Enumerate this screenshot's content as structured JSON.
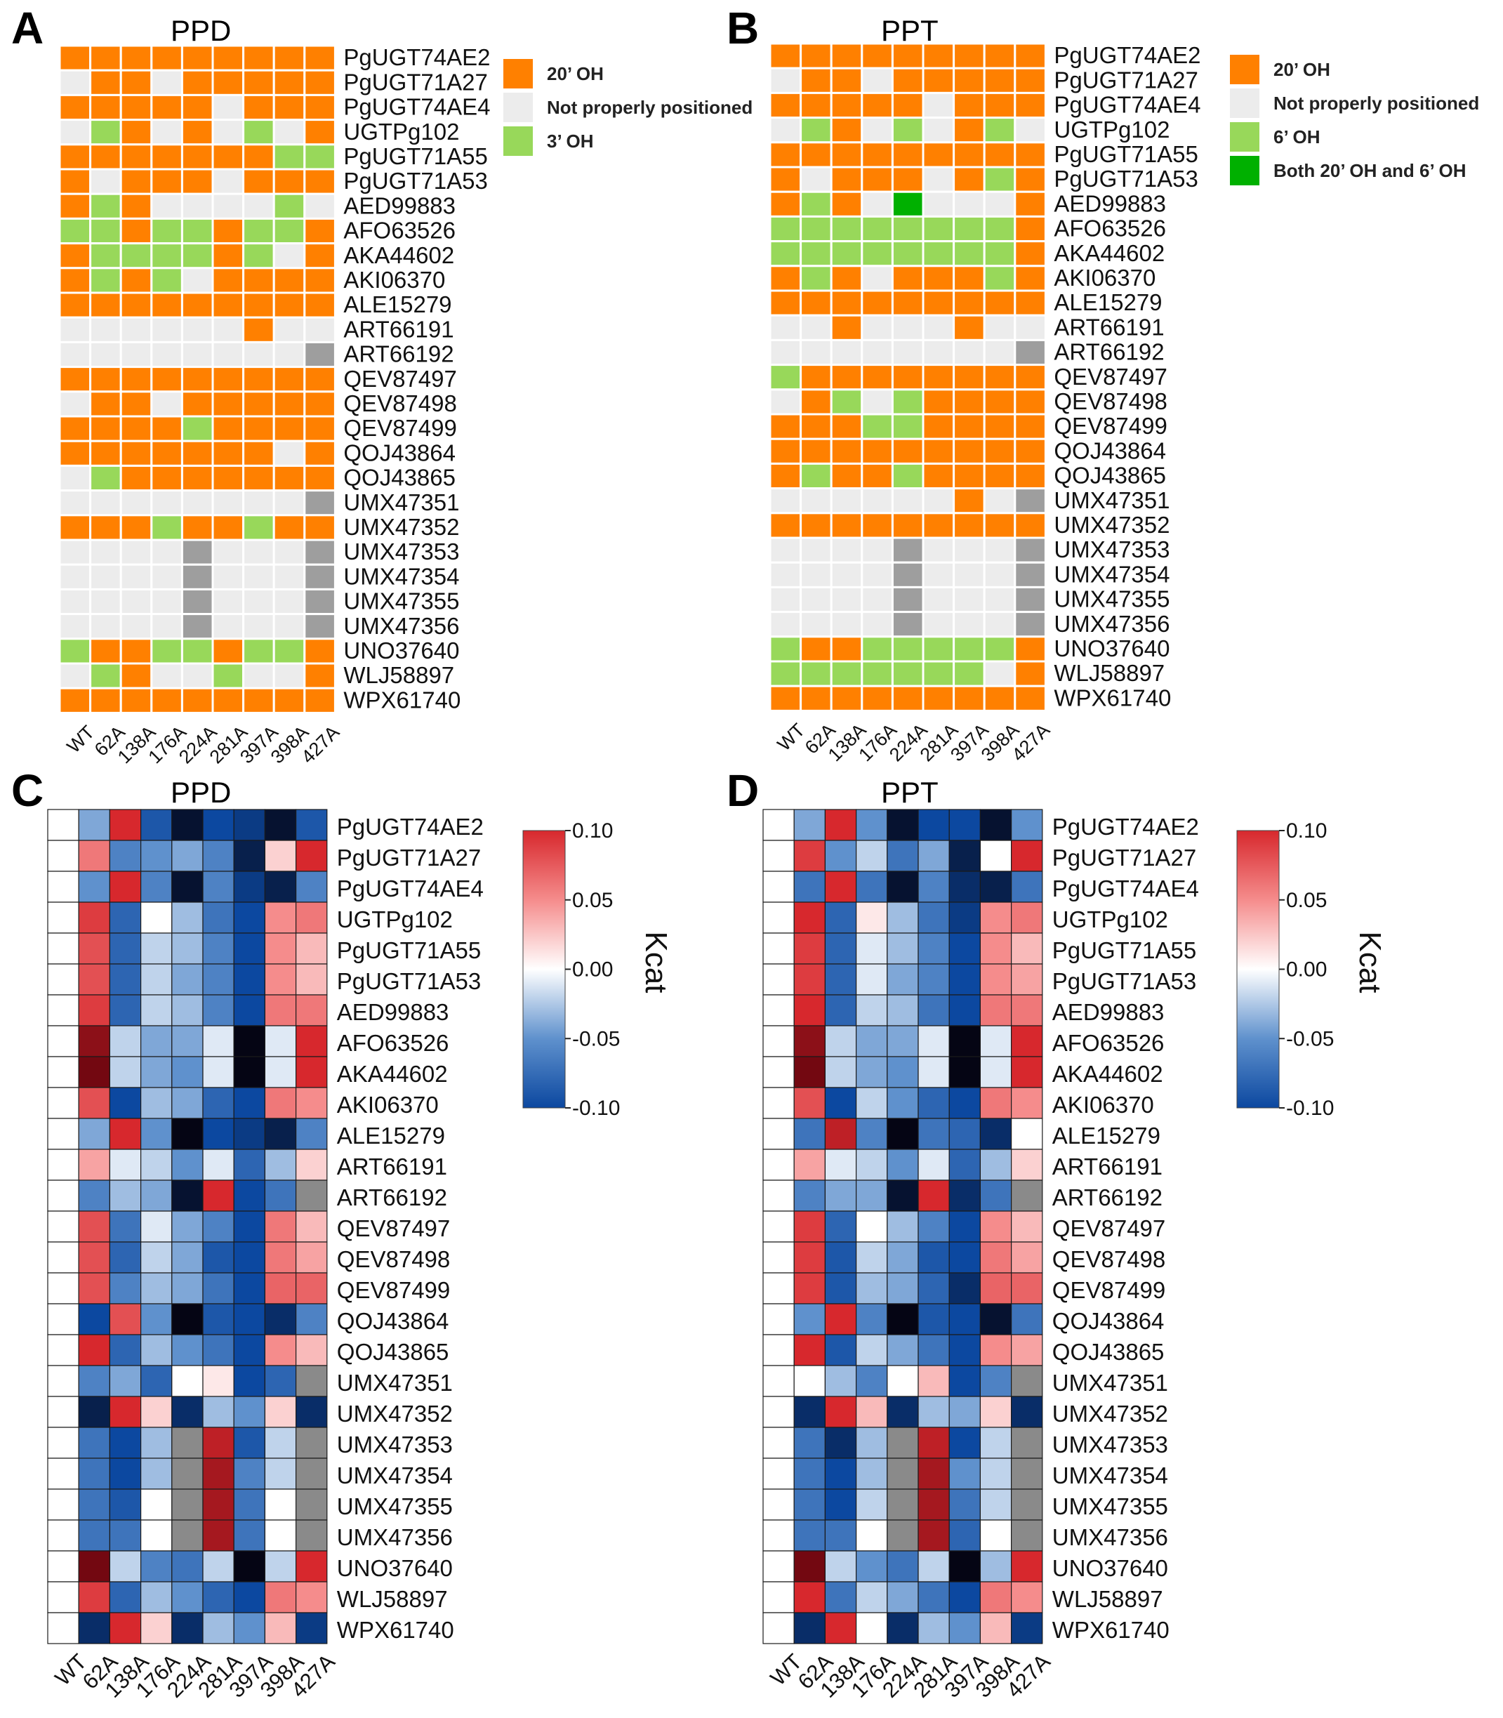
{
  "panels": [
    {
      "letter": "A",
      "title": "PPD"
    },
    {
      "letter": "B",
      "title": "PPT"
    },
    {
      "letter": "C",
      "title": "PPD"
    },
    {
      "letter": "D",
      "title": "PPT"
    }
  ],
  "colors": {
    "oh20": "#ff8000",
    "notpos": "#ececec",
    "oh3": "#98d85a",
    "both": "#00b000",
    "missing": "#9e9e9e",
    "heat_missing": "#8a8a8a"
  },
  "chart_data": [
    {
      "panel": "A",
      "type": "heatmap",
      "title": "PPD",
      "columns": [
        "WT",
        "62A",
        "138A",
        "176A",
        "224A",
        "281A",
        "397A",
        "398A",
        "427A"
      ],
      "rows": [
        "PgUGT74AE2",
        "PgUGT71A27",
        "PgUGT74AE4",
        "UGTPg102",
        "PgUGT71A55",
        "PgUGT71A53",
        "AED99883",
        "AFO63526",
        "AKA44602",
        "AKI06370",
        "ALE15279",
        "ART66191",
        "ART66192",
        "QEV87497",
        "QEV87498",
        "QEV87499",
        "QOJ43864",
        "QOJ43865",
        "UMX47351",
        "UMX47352",
        "UMX47353",
        "UMX47354",
        "UMX47355",
        "UMX47356",
        "UNO37640",
        "WLJ58897",
        "WPX61740"
      ],
      "legend": [
        {
          "code": "O",
          "label": "20’ OH"
        },
        {
          "code": "N",
          "label": "Not properly positioned"
        },
        {
          "code": "G",
          "label": "3’ OH"
        }
      ],
      "grid": [
        "OOOOOOOOO",
        "NOONOOOOO",
        "OOOOONOOO",
        "NGONONGNO",
        "OOOOOOOGG",
        "ONOOONOOO",
        "OGONNNNGN",
        "GGOGGOGGO",
        "OGGGGOGNO",
        "OGOGNOOOO",
        "OOOOOOOOO",
        "NNNNNNONN",
        "NNNNNNNNX",
        "OOOOOOOOO",
        "NOONOOOOO",
        "OOOOGOOOO",
        "OOOOOOONO",
        "NGOOOOOOO",
        "NNNNNNNNX",
        "OOOGOOGOO",
        "NNNNXNNNX",
        "NNNNXNNNX",
        "NNNNXNNNX",
        "NNNNXNNNX",
        "GOOGGOGGO",
        "NGONNGNNO",
        "OOOOOOOOO"
      ]
    },
    {
      "panel": "B",
      "type": "heatmap",
      "title": "PPT",
      "columns": [
        "WT",
        "62A",
        "138A",
        "176A",
        "224A",
        "281A",
        "397A",
        "398A",
        "427A"
      ],
      "rows": [
        "PgUGT74AE2",
        "PgUGT71A27",
        "PgUGT74AE4",
        "UGTPg102",
        "PgUGT71A55",
        "PgUGT71A53",
        "AED99883",
        "AFO63526",
        "AKA44602",
        "AKI06370",
        "ALE15279",
        "ART66191",
        "ART66192",
        "QEV87497",
        "QEV87498",
        "QEV87499",
        "QOJ43864",
        "QOJ43865",
        "UMX47351",
        "UMX47352",
        "UMX47353",
        "UMX47354",
        "UMX47355",
        "UMX47356",
        "UNO37640",
        "WLJ58897",
        "WPX61740"
      ],
      "legend": [
        {
          "code": "O",
          "label": "20’ OH"
        },
        {
          "code": "N",
          "label": "Not properly positioned"
        },
        {
          "code": "G",
          "label": "6’ OH"
        },
        {
          "code": "B",
          "label": "Both 20’ OH and 6’ OH"
        }
      ],
      "grid": [
        "OOOOOOOOO",
        "NOONOOOOO",
        "OOOOONOOO",
        "NGONGNOGN",
        "OOOOOOOOO",
        "ONOOONOGO",
        "OGONBNNNO",
        "GGGGGGGGO",
        "GGGGGGGGO",
        "OGONOOOGO",
        "OOOOOOOOO",
        "NNONNNONN",
        "NNNNNNNNX",
        "GOOOOOOOO",
        "NOGNGOOOO",
        "OOOGGOOOO",
        "OOOOOOOOO",
        "OGOOGOOOO",
        "NNNNNNONX",
        "OOOOOOOOO",
        "NNNNXNNNX",
        "NNNNXNNNX",
        "NNNNXNNNX",
        "NNNNXNNNX",
        "GOOGGGGGO",
        "GGGGGGGNO",
        "OOOOOOOOO"
      ]
    },
    {
      "panel": "C",
      "type": "heatmap",
      "title": "PPD",
      "value_name": "Kcat",
      "color_range": [
        -0.1,
        0.1
      ],
      "colorbar_ticks": [
        "0.10",
        "0.05",
        "0.00",
        "-0.05",
        "-0.10"
      ],
      "columns": [
        "WT",
        "62A",
        "138A",
        "176A",
        "224A",
        "281A",
        "397A",
        "398A",
        "427A"
      ],
      "rows": [
        "PgUGT74AE2",
        "PgUGT71A27",
        "PgUGT74AE4",
        "UGTPg102",
        "PgUGT71A55",
        "PgUGT71A53",
        "AED99883",
        "AFO63526",
        "AKA44602",
        "AKI06370",
        "ALE15279",
        "ART66191",
        "ART66192",
        "QEV87497",
        "QEV87498",
        "QEV87499",
        "QOJ43864",
        "QOJ43865",
        "UMX47351",
        "UMX47352",
        "UMX47353",
        "UMX47354",
        "UMX47355",
        "UMX47356",
        "UNO37640",
        "WLJ58897",
        "WPX61740"
      ],
      "values": [
        [
          0,
          -0.04,
          0.1,
          -0.09,
          -0.14,
          -0.1,
          -0.11,
          -0.14,
          -0.09
        ],
        [
          0,
          0.06,
          -0.06,
          -0.05,
          -0.04,
          -0.06,
          -0.13,
          0.02,
          0.1
        ],
        [
          0,
          -0.05,
          0.1,
          -0.06,
          -0.14,
          -0.06,
          -0.11,
          -0.13,
          -0.06
        ],
        [
          0,
          0.09,
          -0.08,
          0.0,
          -0.03,
          -0.07,
          -0.1,
          0.05,
          0.06
        ],
        [
          0,
          0.08,
          -0.08,
          -0.02,
          -0.03,
          -0.06,
          -0.1,
          0.05,
          0.03
        ],
        [
          0,
          0.08,
          -0.08,
          -0.02,
          -0.04,
          -0.06,
          -0.1,
          0.05,
          0.03
        ],
        [
          0,
          0.09,
          -0.08,
          -0.02,
          -0.03,
          -0.06,
          -0.1,
          0.06,
          0.06
        ],
        [
          0,
          0.13,
          -0.02,
          -0.04,
          -0.04,
          -0.01,
          -0.15,
          -0.01,
          0.1
        ],
        [
          0,
          0.14,
          -0.02,
          -0.04,
          -0.05,
          -0.01,
          -0.15,
          -0.01,
          0.1
        ],
        [
          0,
          0.08,
          -0.1,
          -0.03,
          -0.04,
          -0.08,
          -0.1,
          0.06,
          0.05
        ],
        [
          0,
          -0.04,
          0.1,
          -0.05,
          -0.15,
          -0.1,
          -0.11,
          -0.13,
          -0.06
        ],
        [
          0,
          0.04,
          -0.01,
          -0.02,
          -0.05,
          -0.01,
          -0.08,
          -0.03,
          0.02
        ],
        [
          0,
          -0.06,
          -0.03,
          -0.04,
          -0.14,
          0.1,
          -0.1,
          -0.07,
          null
        ],
        [
          0,
          0.08,
          -0.07,
          -0.01,
          -0.04,
          -0.06,
          -0.1,
          0.06,
          0.03
        ],
        [
          0,
          0.08,
          -0.08,
          -0.02,
          -0.04,
          -0.09,
          -0.1,
          0.06,
          0.04
        ],
        [
          0,
          0.08,
          -0.06,
          -0.03,
          -0.04,
          -0.07,
          -0.1,
          0.07,
          0.07
        ],
        [
          0,
          -0.1,
          0.08,
          -0.05,
          -0.15,
          -0.09,
          -0.1,
          -0.12,
          -0.06
        ],
        [
          0,
          0.1,
          -0.08,
          -0.03,
          -0.05,
          -0.07,
          -0.1,
          0.05,
          0.03
        ],
        [
          0,
          -0.06,
          -0.04,
          -0.08,
          0.0,
          0.01,
          -0.1,
          -0.08,
          null
        ],
        [
          0,
          -0.13,
          0.1,
          0.02,
          -0.12,
          -0.03,
          -0.05,
          0.02,
          -0.12
        ],
        [
          0,
          -0.07,
          -0.1,
          -0.03,
          null,
          0.11,
          -0.09,
          -0.02,
          null
        ],
        [
          0,
          -0.07,
          -0.1,
          -0.03,
          null,
          0.12,
          -0.06,
          -0.02,
          null
        ],
        [
          0,
          -0.07,
          -0.09,
          0.0,
          null,
          0.12,
          -0.07,
          0.0,
          null
        ],
        [
          0,
          -0.07,
          -0.07,
          0.0,
          null,
          0.12,
          -0.07,
          0.0,
          null
        ],
        [
          0,
          0.14,
          -0.02,
          -0.06,
          -0.07,
          -0.02,
          -0.15,
          -0.02,
          0.1
        ],
        [
          0,
          0.09,
          -0.08,
          -0.03,
          -0.05,
          -0.08,
          -0.1,
          0.06,
          0.05
        ],
        [
          0,
          -0.12,
          0.1,
          0.02,
          -0.12,
          -0.03,
          -0.05,
          0.03,
          -0.11
        ]
      ]
    },
    {
      "panel": "D",
      "type": "heatmap",
      "title": "PPT",
      "value_name": "Kcat",
      "color_range": [
        -0.1,
        0.1
      ],
      "colorbar_ticks": [
        "0.10",
        "0.05",
        "0.00",
        "-0.05",
        "-0.10"
      ],
      "columns": [
        "WT",
        "62A",
        "138A",
        "176A",
        "224A",
        "281A",
        "397A",
        "398A",
        "427A"
      ],
      "rows": [
        "PgUGT74AE2",
        "PgUGT71A27",
        "PgUGT74AE4",
        "UGTPg102",
        "PgUGT71A55",
        "PgUGT71A53",
        "AED99883",
        "AFO63526",
        "AKA44602",
        "AKI06370",
        "ALE15279",
        "ART66191",
        "ART66192",
        "QEV87497",
        "QEV87498",
        "QEV87499",
        "QOJ43864",
        "QOJ43865",
        "UMX47351",
        "UMX47352",
        "UMX47353",
        "UMX47354",
        "UMX47355",
        "UMX47356",
        "UNO37640",
        "WLJ58897",
        "WPX61740"
      ],
      "values": [
        [
          0,
          -0.04,
          0.1,
          -0.05,
          -0.14,
          -0.1,
          -0.1,
          -0.14,
          -0.05
        ],
        [
          0,
          0.09,
          -0.05,
          -0.02,
          -0.07,
          -0.04,
          -0.13,
          0.0,
          0.1
        ],
        [
          0,
          -0.07,
          0.1,
          -0.07,
          -0.14,
          -0.06,
          -0.12,
          -0.13,
          -0.07
        ],
        [
          0,
          0.1,
          -0.08,
          0.01,
          -0.03,
          -0.07,
          -0.11,
          0.05,
          0.06
        ],
        [
          0,
          0.09,
          -0.08,
          -0.01,
          -0.03,
          -0.06,
          -0.1,
          0.05,
          0.03
        ],
        [
          0,
          0.09,
          -0.08,
          -0.01,
          -0.04,
          -0.06,
          -0.1,
          0.05,
          0.04
        ],
        [
          0,
          0.1,
          -0.08,
          -0.02,
          -0.03,
          -0.07,
          -0.1,
          0.06,
          0.06
        ],
        [
          0,
          0.13,
          -0.02,
          -0.04,
          -0.04,
          -0.01,
          -0.15,
          -0.01,
          0.1
        ],
        [
          0,
          0.14,
          -0.02,
          -0.04,
          -0.05,
          -0.01,
          -0.15,
          -0.01,
          0.1
        ],
        [
          0,
          0.08,
          -0.1,
          -0.02,
          -0.05,
          -0.08,
          -0.1,
          0.06,
          0.05
        ],
        [
          0,
          -0.07,
          0.11,
          -0.06,
          -0.15,
          -0.07,
          -0.08,
          -0.12,
          0.0
        ],
        [
          0,
          0.04,
          -0.01,
          -0.02,
          -0.05,
          -0.01,
          -0.08,
          -0.03,
          0.02
        ],
        [
          0,
          -0.06,
          -0.04,
          -0.04,
          -0.14,
          0.1,
          -0.12,
          -0.07,
          null
        ],
        [
          0,
          0.09,
          -0.08,
          0.0,
          -0.03,
          -0.06,
          -0.1,
          0.05,
          0.03
        ],
        [
          0,
          0.09,
          -0.09,
          -0.02,
          -0.04,
          -0.09,
          -0.1,
          0.06,
          0.04
        ],
        [
          0,
          0.09,
          -0.09,
          -0.03,
          -0.04,
          -0.08,
          -0.12,
          0.07,
          0.07
        ],
        [
          0,
          -0.05,
          0.1,
          -0.06,
          -0.15,
          -0.09,
          -0.1,
          -0.14,
          -0.07
        ],
        [
          0,
          0.1,
          -0.09,
          -0.02,
          -0.04,
          -0.07,
          -0.1,
          0.05,
          0.04
        ],
        [
          0,
          0.0,
          -0.03,
          -0.06,
          0.0,
          0.03,
          -0.1,
          -0.06,
          null
        ],
        [
          0,
          -0.12,
          0.1,
          0.03,
          -0.12,
          -0.03,
          -0.04,
          0.02,
          -0.12
        ],
        [
          0,
          -0.07,
          -0.12,
          -0.03,
          null,
          0.11,
          -0.1,
          -0.02,
          null
        ],
        [
          0,
          -0.07,
          -0.1,
          -0.03,
          null,
          0.12,
          -0.05,
          -0.02,
          null
        ],
        [
          0,
          -0.07,
          -0.1,
          -0.02,
          null,
          0.12,
          -0.07,
          -0.02,
          null
        ],
        [
          0,
          -0.07,
          -0.07,
          0.0,
          null,
          0.12,
          -0.08,
          0.0,
          null
        ],
        [
          0,
          0.14,
          -0.02,
          -0.05,
          -0.07,
          -0.02,
          -0.15,
          -0.03,
          0.1
        ],
        [
          0,
          0.1,
          -0.07,
          -0.02,
          -0.04,
          -0.07,
          -0.1,
          0.06,
          0.05
        ],
        [
          0,
          -0.12,
          0.1,
          0.0,
          -0.12,
          -0.03,
          -0.05,
          0.03,
          -0.11
        ]
      ]
    }
  ]
}
